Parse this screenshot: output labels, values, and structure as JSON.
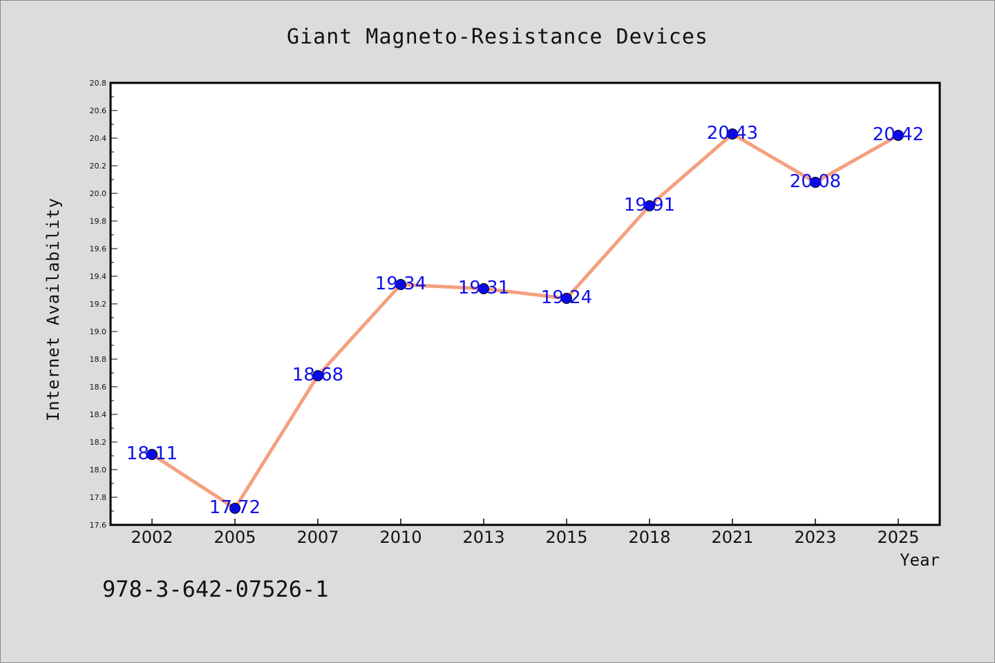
{
  "chart_data": {
    "type": "line",
    "title": "Giant Magneto-Resistance Devices",
    "xlabel": "Year",
    "ylabel": "Internet Availability",
    "categories": [
      "2002",
      "2005",
      "2007",
      "2010",
      "2013",
      "2015",
      "2018",
      "2021",
      "2023",
      "2025"
    ],
    "values": [
      18.11,
      17.72,
      18.68,
      19.34,
      19.31,
      19.24,
      19.91,
      20.43,
      20.08,
      20.42
    ],
    "data_labels": [
      "18.11",
      "17.72",
      "18.68",
      "19.34",
      "19.31",
      "19.24",
      "19.91",
      "20.43",
      "20.08",
      "20.42"
    ],
    "ylim": [
      17.6,
      20.8
    ],
    "yticks": [
      "17.6",
      "17.8",
      "18.0",
      "18.2",
      "18.4",
      "18.6",
      "18.8",
      "19.0",
      "19.2",
      "19.4",
      "19.6",
      "19.8",
      "20.0",
      "20.2",
      "20.4",
      "20.6",
      "20.8"
    ],
    "grid": false,
    "legend": "none",
    "line_color": "#f4a07f",
    "marker_color": "#0a0ae6",
    "label_color": "#1010e8"
  },
  "annotation": "978-3-642-07526-1"
}
